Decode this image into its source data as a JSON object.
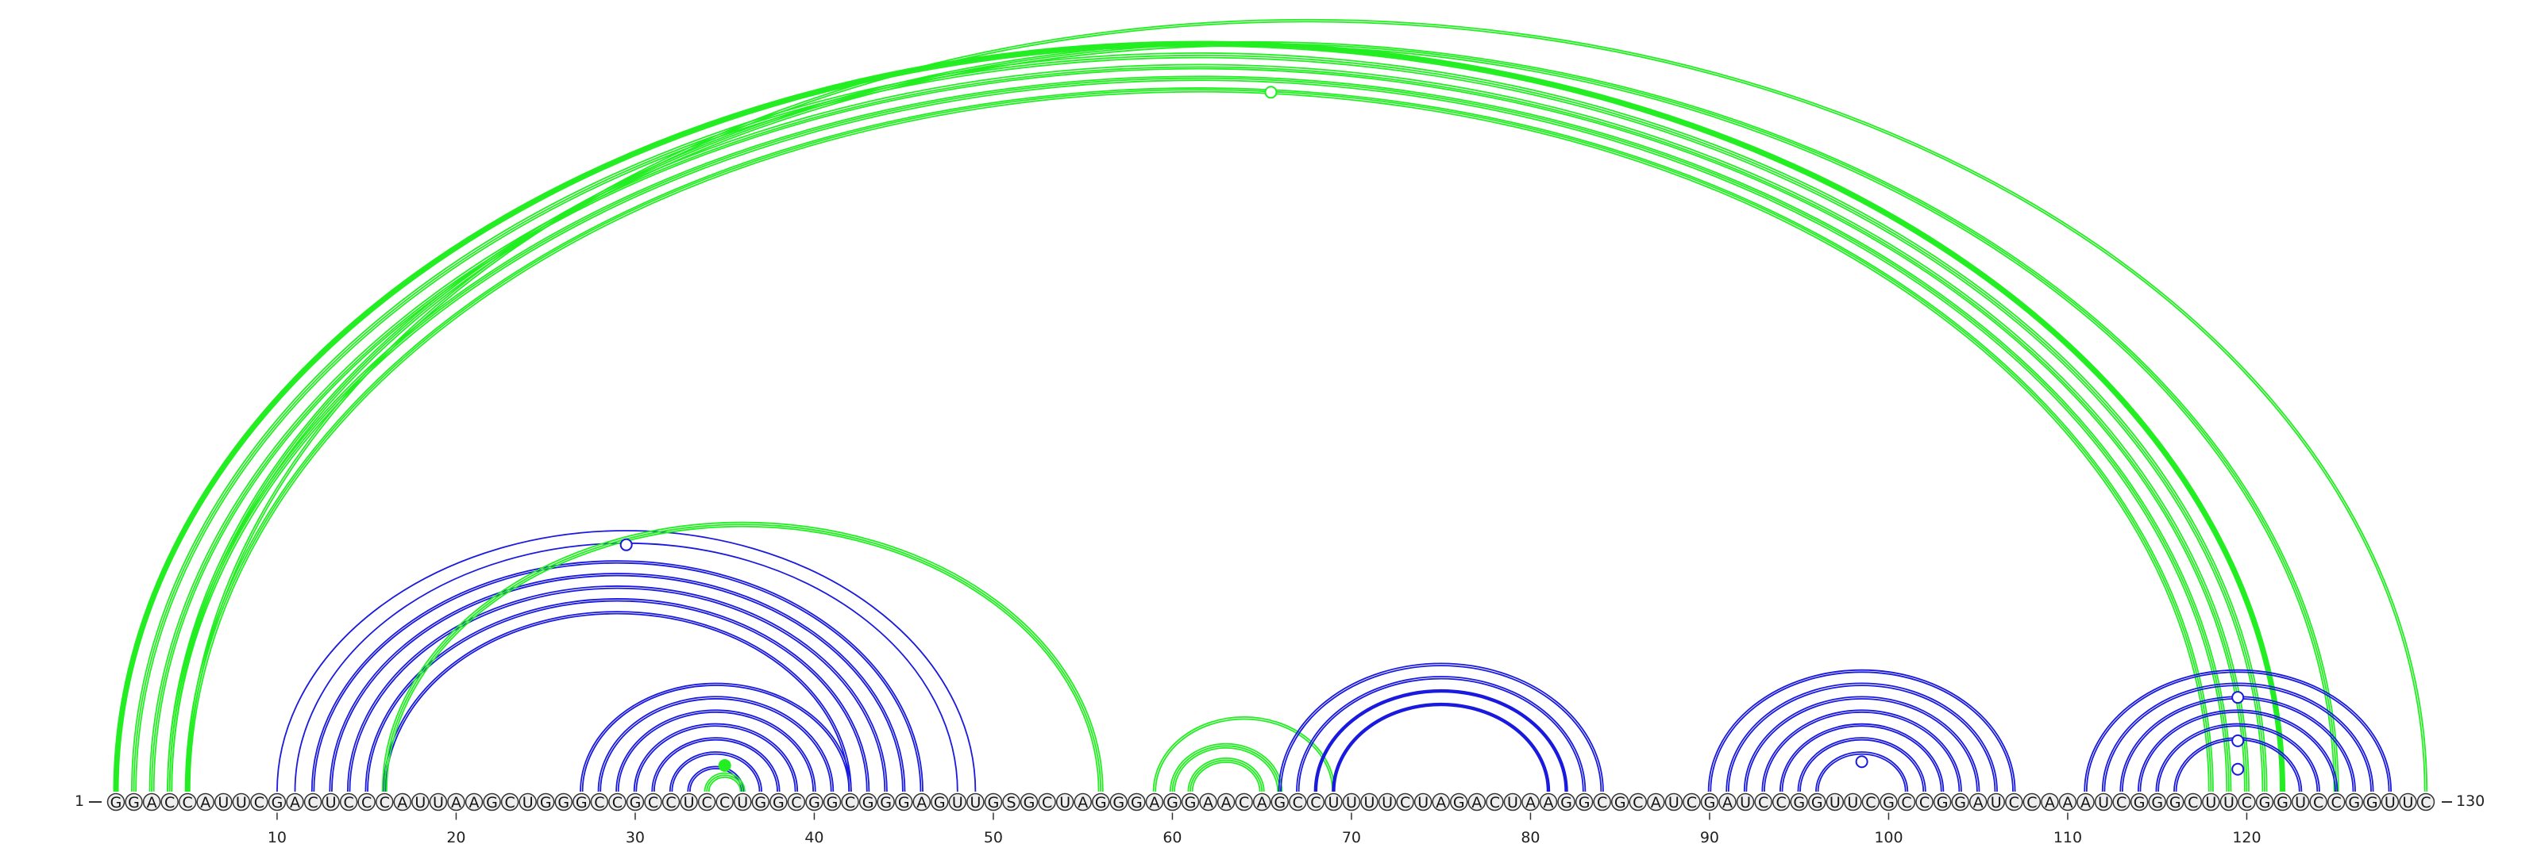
{
  "sequence": "GGACCAUUCGACUCCCAUUAAGCUGGGCCGCCUCCUGGCGGCGGGAGUUGSGCUAGGGAGGAACAGCCUUUUCUAGACUAAGGCGCAUCGAUCCGGUUCGCCGGAUCCAAAUCGGGCUUCGGUCCGGUUC",
  "start_label": "1",
  "end_label": "130",
  "tick_labels": [
    "10",
    "20",
    "30",
    "40",
    "50",
    "60",
    "70",
    "80",
    "90",
    "100",
    "110",
    "120"
  ],
  "tick_positions": [
    10,
    20,
    30,
    40,
    50,
    60,
    70,
    80,
    90,
    100,
    110,
    120
  ],
  "colors": {
    "blue": "#1a1adf",
    "green": "#22ee22",
    "nucleotide_fill": "#eeeeee",
    "stroke": "#333333"
  },
  "arc_groups": [
    {
      "color": "green",
      "i_start": 1,
      "j_end": 122,
      "count": 5,
      "strands": 3
    },
    {
      "color": "green",
      "i_start": 1,
      "j_end": 122,
      "count": 1,
      "strands": 2
    },
    {
      "color": "green",
      "i_start": 4,
      "j_end": 125,
      "count": 1,
      "strands": 3
    },
    {
      "color": "green",
      "i_start": 5,
      "j_end": 130,
      "count": 1,
      "strands": 2
    },
    {
      "color": "blue",
      "i_start": 10,
      "j_end": 49,
      "count": 2,
      "strands": 1
    },
    {
      "color": "blue",
      "i_start": 12,
      "j_end": 46,
      "count": 2,
      "strands": 2
    },
    {
      "color": "blue",
      "i_start": 14,
      "j_end": 44,
      "count": 3,
      "strands": 2
    },
    {
      "color": "green",
      "i_start": 16,
      "j_end": 56,
      "count": 1,
      "strands": 3
    },
    {
      "color": "blue",
      "i_start": 27,
      "j_end": 42,
      "count": 7,
      "strands": 2
    },
    {
      "color": "green",
      "i_start": 34,
      "j_end": 36,
      "count": 1,
      "strands": 3
    },
    {
      "color": "green",
      "i_start": 59,
      "j_end": 69,
      "count": 1,
      "strands": 2
    },
    {
      "color": "green",
      "i_start": 60,
      "j_end": 66,
      "count": 2,
      "strands": 3
    },
    {
      "color": "blue",
      "i_start": 66,
      "j_end": 84,
      "count": 4,
      "strands": 2
    },
    {
      "color": "blue",
      "i_start": 68,
      "j_end": 82,
      "count": 2,
      "strands": 1
    },
    {
      "color": "blue",
      "i_start": 90,
      "j_end": 107,
      "count": 7,
      "strands": 2
    },
    {
      "color": "blue",
      "i_start": 111,
      "j_end": 128,
      "count": 6,
      "strands": 2
    }
  ],
  "markers": [
    {
      "pos": 65.5,
      "h": 0.935,
      "color": "green",
      "filled": false
    },
    {
      "pos": 29.5,
      "h": 0.33,
      "color": "blue",
      "filled": false
    },
    {
      "pos": 35,
      "h": 0.035,
      "color": "green",
      "filled": true
    },
    {
      "pos": 98.5,
      "h": 0.04,
      "color": "blue",
      "filled": false
    },
    {
      "pos": 119.5,
      "h": 0.126,
      "color": "blue",
      "filled": false
    },
    {
      "pos": 119.5,
      "h": 0.068,
      "color": "blue",
      "filled": false
    },
    {
      "pos": 119.5,
      "h": 0.03,
      "color": "blue",
      "filled": false
    }
  ]
}
